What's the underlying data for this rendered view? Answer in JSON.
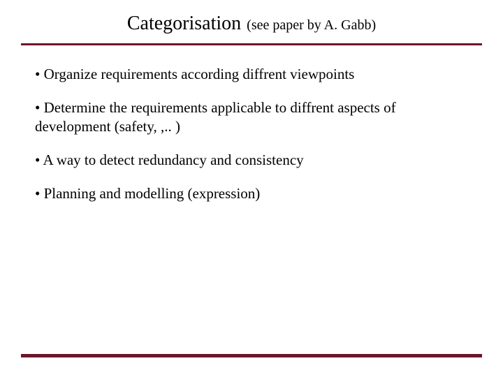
{
  "colors": {
    "rule": "#6b152b",
    "text": "#000000",
    "background": "#ffffff"
  },
  "typography": {
    "family": "Times New Roman",
    "title_main_size": 28,
    "title_sub_size": 20,
    "bullet_size": 21
  },
  "title": {
    "main": "Categorisation",
    "sub": "(see paper by A. Gabb)"
  },
  "bullets": [
    "• Organize requirements according diffrent viewpoints",
    "• Determine the requirements applicable to diffrent aspects of development (safety, ,.. )",
    "• A way to detect redundancy and consistency",
    "•  Planning and modelling (expression)"
  ]
}
